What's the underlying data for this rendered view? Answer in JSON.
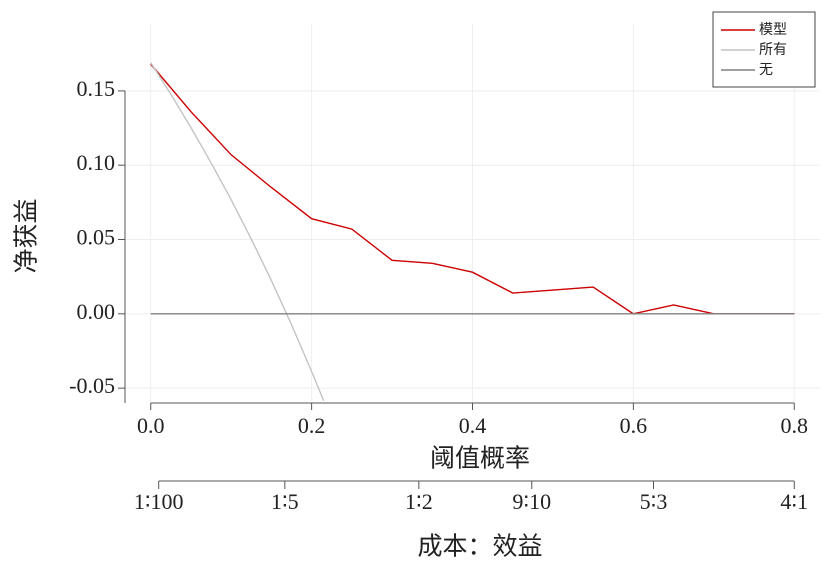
{
  "chart_data": {
    "type": "line",
    "x_label": "阈值概率",
    "y_label": "净获益",
    "x2_label": "成本：效益",
    "xlim": [
      -0.032,
      0.832
    ],
    "ylim": [
      -0.06,
      0.195
    ],
    "xticks": [
      {
        "value": 0,
        "label": "0.0"
      },
      0.2,
      0.4,
      0.6,
      0.8
    ],
    "yticks": [
      -0.05,
      {
        "value": 0,
        "label": "0.00"
      },
      0.05,
      {
        "value": 0.1,
        "label": "0.10"
      },
      0.15
    ],
    "x2ticks": [
      {
        "value": 0.0099,
        "label": "1∶100"
      },
      {
        "value": 0.1667,
        "label": "1∶5"
      },
      {
        "value": 0.3333,
        "label": "1∶2"
      },
      {
        "value": 0.4737,
        "label": "9∶10"
      },
      {
        "value": 0.625,
        "label": "5∶3"
      },
      {
        "value": 0.8,
        "label": "4∶1"
      }
    ],
    "grid": true,
    "legend": "upper right",
    "series": [
      {
        "name": "模型",
        "color": "#cc0000",
        "x": [
          0,
          0.05,
          0.1,
          0.15,
          0.2,
          0.25,
          0.3,
          0.35,
          0.4,
          0.45,
          0.5,
          0.55,
          0.6,
          0.65,
          0.7,
          0.75,
          0.8
        ],
        "values": [
          0.168,
          0.136,
          0.107,
          0.085,
          0.064,
          0.057,
          0.036,
          0.034,
          0.028,
          0.014,
          0.016,
          0.018,
          0,
          0.006,
          0,
          0,
          0
        ]
      },
      {
        "name": "所有",
        "color": "#c4c4c4",
        "x": [
          0,
          0.025,
          0.05,
          0.075,
          0.1,
          0.125,
          0.15,
          0.175,
          0.2,
          0.21,
          0.215
        ],
        "values": [
          0.169,
          0.1477,
          0.1253,
          0.1016,
          0.0767,
          0.0503,
          0.0224,
          -0.0073,
          -0.0388,
          -0.0519,
          -0.0586
        ]
      },
      {
        "name": "无",
        "color": "#808080",
        "x": [
          0,
          0.8
        ],
        "values": [
          0,
          0
        ]
      }
    ]
  }
}
